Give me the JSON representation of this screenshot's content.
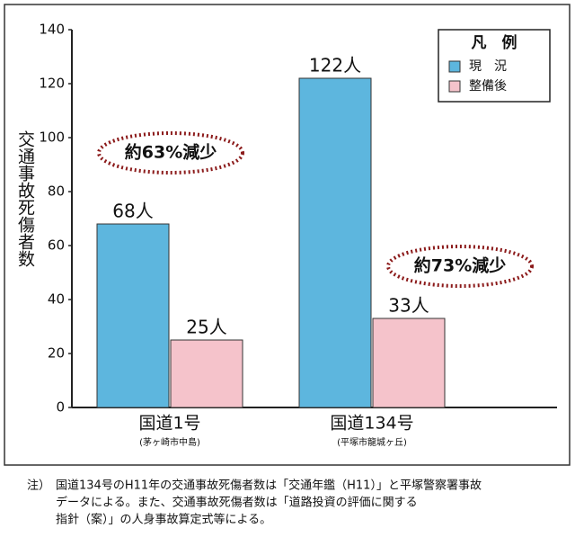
{
  "chart_data": {
    "type": "bar",
    "y_label": "交通事故死傷者数",
    "categories": [
      "国道1号",
      "国道134号"
    ],
    "category_notes": [
      "(茅ヶ崎市中島)",
      "(平塚市龍城ヶ丘)"
    ],
    "series": [
      {
        "name": "現　況",
        "color": "#5db6de",
        "values": [
          68,
          122
        ],
        "value_labels": [
          "68人",
          "122人"
        ]
      },
      {
        "name": "整備後",
        "color": "#f5c3cb",
        "values": [
          25,
          33
        ],
        "value_labels": [
          "25人",
          "33人"
        ]
      }
    ],
    "legend_title": "凡　例",
    "legend": "upper right",
    "annotations": [
      "約63%減少",
      "約73%減少"
    ],
    "ylim": [
      0,
      140
    ],
    "yticks": [
      0,
      20,
      40,
      60,
      80,
      100,
      120,
      140
    ],
    "grid": false,
    "note_label": "注）",
    "note_lines": [
      "国道134号のH11年の交通事故死傷者数は「交通年鑑（H11）」と平塚警察署事故",
      "データによる。また、交通事故死傷者数は「道路投資の評価に関する",
      "指針（案）」の人身事故算定式等による。"
    ]
  }
}
